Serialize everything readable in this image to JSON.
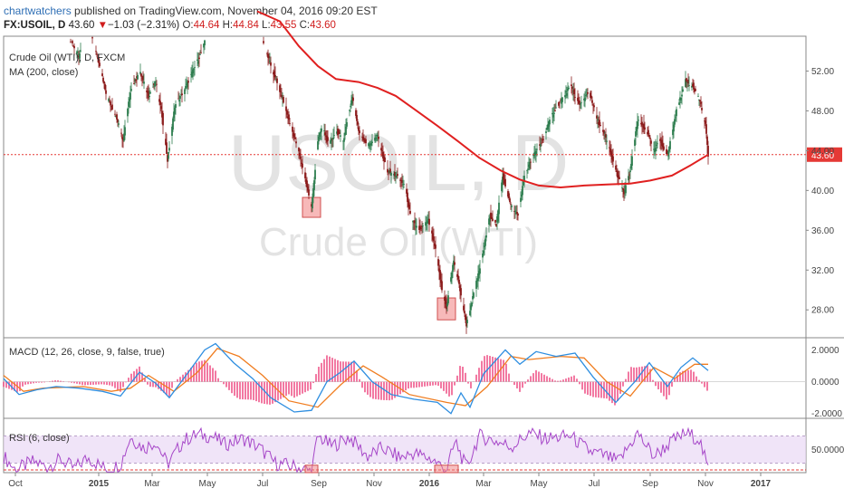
{
  "header": {
    "author": "chartwatchers",
    "published": "published on TradingView.com, November 04, 2016 09:20 EST",
    "symbol": "FX:USOIL, D",
    "last": "43.60",
    "arrow": "▼",
    "change": "−1.03 (−2.31%)",
    "o_label": "O:",
    "o": "44.64",
    "h_label": "H:",
    "h": "44.84",
    "l_label": "L:",
    "l": "43.55",
    "c_label": "C:",
    "c": "43.60"
  },
  "watermark": {
    "line1": "USOIL, D",
    "line2": "Crude Oil (WTI)"
  },
  "colors": {
    "candle_up": "#2e7d4f",
    "candle_down": "#8b1a1a",
    "ma": "#e02020",
    "macd": "#2e8ee0",
    "signal": "#f07d20",
    "hist": "#f06292",
    "rsi": "#a646c8",
    "price_tag": "#e53935",
    "highlight": "#f08080"
  },
  "chart_data": [
    {
      "type": "candlestick",
      "panel": "price",
      "legend": [
        "Crude Oil (WTI), D, FXCM",
        "MA (200, close)"
      ],
      "x_ticks": [
        "Oct",
        "2015",
        "Mar",
        "May",
        "Jul",
        "Sep",
        "Nov",
        "2016",
        "Mar",
        "May",
        "Jul",
        "Sep",
        "Nov",
        "2017"
      ],
      "x_tick_dates": [
        "2014-10-01",
        "2015-01-01",
        "2015-03-01",
        "2015-05-01",
        "2015-07-01",
        "2015-09-01",
        "2015-11-01",
        "2016-01-01",
        "2016-03-01",
        "2016-05-01",
        "2016-07-01",
        "2016-09-01",
        "2016-11-01",
        "2017-01-01"
      ],
      "x_range": [
        "2014-09-18",
        "2017-02-20"
      ],
      "y_ticks": [
        28.0,
        32.0,
        36.0,
        40.0,
        44.0,
        48.0,
        52.0
      ],
      "y_tick_labels": [
        "28.00",
        "32.00",
        "36.00",
        "40.00",
        "44.00",
        "48.00",
        "52.00"
      ],
      "ylim": [
        25.2,
        55.5
      ],
      "last_price": 43.6,
      "last_price_label": "43.60",
      "close_path": [
        [
          "2014-10-01",
          60.0
        ],
        [
          "2014-10-20",
          57.0
        ],
        [
          "2014-11-10",
          55.5
        ],
        [
          "2014-11-25",
          56.0
        ],
        [
          "2014-12-10",
          53.5
        ],
        [
          "2014-12-20",
          57.0
        ],
        [
          "2015-01-01",
          53.0
        ],
        [
          "2015-01-10",
          49.5
        ],
        [
          "2015-01-20",
          47.5
        ],
        [
          "2015-01-28",
          45.0
        ],
        [
          "2015-02-05",
          50.0
        ],
        [
          "2015-02-15",
          52.0
        ],
        [
          "2015-02-25",
          49.5
        ],
        [
          "2015-03-05",
          51.0
        ],
        [
          "2015-03-12",
          47.5
        ],
        [
          "2015-03-18",
          43.0
        ],
        [
          "2015-03-26",
          48.5
        ],
        [
          "2015-04-05",
          50.0
        ],
        [
          "2015-04-15",
          52.0
        ],
        [
          "2015-04-25",
          54.0
        ],
        [
          "2015-05-05",
          57.0
        ],
        [
          "2015-06-28",
          56.0
        ],
        [
          "2015-07-05",
          54.0
        ],
        [
          "2015-07-12",
          52.0
        ],
        [
          "2015-07-22",
          49.5
        ],
        [
          "2015-07-30",
          47.0
        ],
        [
          "2015-08-08",
          44.5
        ],
        [
          "2015-08-15",
          42.0
        ],
        [
          "2015-08-24",
          38.3
        ],
        [
          "2015-08-31",
          45.0
        ],
        [
          "2015-09-05",
          46.5
        ],
        [
          "2015-09-12",
          44.5
        ],
        [
          "2015-09-20",
          46.0
        ],
        [
          "2015-09-28",
          45.0
        ],
        [
          "2015-10-08",
          49.5
        ],
        [
          "2015-10-15",
          46.0
        ],
        [
          "2015-10-25",
          44.5
        ],
        [
          "2015-11-05",
          45.5
        ],
        [
          "2015-11-15",
          42.0
        ],
        [
          "2015-11-25",
          41.5
        ],
        [
          "2015-12-05",
          40.5
        ],
        [
          "2015-12-12",
          37.0
        ],
        [
          "2015-12-22",
          36.0
        ],
        [
          "2015-12-31",
          37.0
        ],
        [
          "2016-01-08",
          34.0
        ],
        [
          "2016-01-15",
          30.0
        ],
        [
          "2016-01-20",
          28.2
        ],
        [
          "2016-01-28",
          33.0
        ],
        [
          "2016-02-03",
          30.5
        ],
        [
          "2016-02-11",
          26.5
        ],
        [
          "2016-02-20",
          30.0
        ],
        [
          "2016-02-28",
          33.0
        ],
        [
          "2016-03-08",
          37.5
        ],
        [
          "2016-03-15",
          36.5
        ],
        [
          "2016-03-22",
          41.5
        ],
        [
          "2016-03-31",
          38.5
        ],
        [
          "2016-04-08",
          37.5
        ],
        [
          "2016-04-15",
          41.5
        ],
        [
          "2016-04-25",
          43.5
        ],
        [
          "2016-05-05",
          45.0
        ],
        [
          "2016-05-15",
          47.5
        ],
        [
          "2016-05-25",
          49.0
        ],
        [
          "2016-06-05",
          50.5
        ],
        [
          "2016-06-15",
          48.5
        ],
        [
          "2016-06-25",
          50.0
        ],
        [
          "2016-07-05",
          47.0
        ],
        [
          "2016-07-15",
          45.0
        ],
        [
          "2016-07-25",
          42.0
        ],
        [
          "2016-08-03",
          39.7
        ],
        [
          "2016-08-10",
          42.0
        ],
        [
          "2016-08-18",
          47.0
        ],
        [
          "2016-08-28",
          46.0
        ],
        [
          "2016-09-05",
          44.0
        ],
        [
          "2016-09-12",
          45.0
        ],
        [
          "2016-09-20",
          43.5
        ],
        [
          "2016-09-30",
          48.0
        ],
        [
          "2016-10-10",
          51.0
        ],
        [
          "2016-10-18",
          50.5
        ],
        [
          "2016-10-26",
          49.0
        ],
        [
          "2016-11-01",
          46.5
        ],
        [
          "2016-11-04",
          43.6
        ]
      ],
      "ma200": [
        [
          "2015-06-25",
          58.0
        ],
        [
          "2015-07-20",
          57.0
        ],
        [
          "2015-08-10",
          54.5
        ],
        [
          "2015-08-31",
          52.5
        ],
        [
          "2015-09-20",
          51.2
        ],
        [
          "2015-10-15",
          50.9
        ],
        [
          "2015-11-05",
          50.3
        ],
        [
          "2015-11-25",
          49.5
        ],
        [
          "2015-12-15",
          48.2
        ],
        [
          "2016-01-10",
          46.5
        ],
        [
          "2016-02-01",
          45.0
        ],
        [
          "2016-02-25",
          43.3
        ],
        [
          "2016-03-20",
          42.0
        ],
        [
          "2016-04-10",
          41.1
        ],
        [
          "2016-05-01",
          40.5
        ],
        [
          "2016-05-25",
          40.3
        ],
        [
          "2016-06-20",
          40.5
        ],
        [
          "2016-07-15",
          40.6
        ],
        [
          "2016-08-10",
          40.7
        ],
        [
          "2016-09-01",
          41.0
        ],
        [
          "2016-09-25",
          41.5
        ],
        [
          "2016-10-15",
          42.5
        ],
        [
          "2016-11-04",
          43.6
        ]
      ],
      "highlights": [
        {
          "date": "2015-08-24",
          "low": 37.3,
          "high": 39.3
        },
        {
          "date": "2016-01-20",
          "low": 27.0,
          "high": 29.2
        }
      ]
    },
    {
      "type": "line",
      "panel": "macd",
      "legend": "MACD (12, 26, close, 9, false, true)",
      "y_ticks": [
        -2.0,
        0.0,
        2.0
      ],
      "y_tick_labels": [
        "-2.0000",
        "0.0000",
        "2.0000"
      ],
      "ylim": [
        -2.3,
        2.6
      ],
      "macd": [
        [
          "2014-09-18",
          0.2
        ],
        [
          "2014-10-05",
          -0.8
        ],
        [
          "2014-10-25",
          -0.5
        ],
        [
          "2014-11-15",
          -0.3
        ],
        [
          "2014-12-10",
          -0.4
        ],
        [
          "2015-01-05",
          -0.6
        ],
        [
          "2015-01-25",
          -0.9
        ],
        [
          "2015-02-15",
          0.6
        ],
        [
          "2015-03-05",
          -0.1
        ],
        [
          "2015-03-20",
          -1.0
        ],
        [
          "2015-04-10",
          0.6
        ],
        [
          "2015-04-28",
          2.0
        ],
        [
          "2015-05-10",
          2.4
        ],
        [
          "2015-05-30",
          1.2
        ],
        [
          "2015-06-20",
          0.2
        ],
        [
          "2015-07-10",
          -1.0
        ],
        [
          "2015-08-05",
          -1.9
        ],
        [
          "2015-08-24",
          -1.8
        ],
        [
          "2015-09-10",
          0.0
        ],
        [
          "2015-09-25",
          0.6
        ],
        [
          "2015-10-10",
          1.3
        ],
        [
          "2015-10-30",
          0.0
        ],
        [
          "2015-11-20",
          -0.8
        ],
        [
          "2015-12-15",
          -1.1
        ],
        [
          "2016-01-10",
          -1.3
        ],
        [
          "2016-01-25",
          -2.0
        ],
        [
          "2016-02-05",
          -0.7
        ],
        [
          "2016-02-15",
          -1.6
        ],
        [
          "2016-03-01",
          0.5
        ],
        [
          "2016-03-25",
          2.0
        ],
        [
          "2016-04-10",
          1.1
        ],
        [
          "2016-04-28",
          1.9
        ],
        [
          "2016-05-20",
          1.6
        ],
        [
          "2016-06-10",
          1.8
        ],
        [
          "2016-06-30",
          0.3
        ],
        [
          "2016-07-25",
          -1.3
        ],
        [
          "2016-08-15",
          0.0
        ],
        [
          "2016-08-31",
          1.2
        ],
        [
          "2016-09-20",
          -0.3
        ],
        [
          "2016-10-05",
          0.9
        ],
        [
          "2016-10-18",
          1.5
        ],
        [
          "2016-11-04",
          0.7
        ]
      ],
      "signal": [
        [
          "2014-09-18",
          0.4
        ],
        [
          "2014-10-10",
          -0.6
        ],
        [
          "2014-11-01",
          -0.4
        ],
        [
          "2014-12-15",
          -0.3
        ],
        [
          "2015-01-15",
          -0.6
        ],
        [
          "2015-02-05",
          -0.4
        ],
        [
          "2015-02-25",
          0.4
        ],
        [
          "2015-03-25",
          -0.6
        ],
        [
          "2015-04-20",
          0.6
        ],
        [
          "2015-05-12",
          2.1
        ],
        [
          "2015-06-05",
          1.6
        ],
        [
          "2015-07-01",
          0.4
        ],
        [
          "2015-07-30",
          -1.2
        ],
        [
          "2015-08-31",
          -1.6
        ],
        [
          "2015-09-25",
          -0.2
        ],
        [
          "2015-10-20",
          1.0
        ],
        [
          "2015-11-10",
          0.3
        ],
        [
          "2015-12-10",
          -0.8
        ],
        [
          "2016-01-20",
          -1.3
        ],
        [
          "2016-02-10",
          -1.5
        ],
        [
          "2016-03-05",
          -0.3
        ],
        [
          "2016-03-31",
          1.6
        ],
        [
          "2016-04-20",
          1.4
        ],
        [
          "2016-05-25",
          1.6
        ],
        [
          "2016-06-20",
          1.5
        ],
        [
          "2016-07-15",
          0.0
        ],
        [
          "2016-08-10",
          -0.9
        ],
        [
          "2016-09-05",
          0.9
        ],
        [
          "2016-09-28",
          0.2
        ],
        [
          "2016-10-20",
          1.1
        ],
        [
          "2016-11-04",
          1.1
        ]
      ]
    },
    {
      "type": "line",
      "panel": "rsi",
      "legend": "RSI (6, close)",
      "y_ticks": [
        50.0
      ],
      "y_tick_labels": [
        "50.0000"
      ],
      "ylim": [
        16,
        92
      ],
      "band": [
        30,
        70
      ],
      "rsi": [
        [
          "2014-09-18",
          40
        ],
        [
          "2014-10-01",
          20
        ],
        [
          "2014-10-20",
          32
        ],
        [
          "2014-11-05",
          25
        ],
        [
          "2014-11-20",
          35
        ],
        [
          "2014-12-05",
          22
        ],
        [
          "2014-12-20",
          38
        ],
        [
          "2015-01-10",
          20
        ],
        [
          "2015-01-25",
          28
        ],
        [
          "2015-02-05",
          68
        ],
        [
          "2015-02-20",
          52
        ],
        [
          "2015-03-05",
          62
        ],
        [
          "2015-03-18",
          28
        ],
        [
          "2015-04-05",
          64
        ],
        [
          "2015-04-20",
          72
        ],
        [
          "2015-05-05",
          70
        ],
        [
          "2015-05-20",
          58
        ],
        [
          "2015-06-10",
          66
        ],
        [
          "2015-06-28",
          52
        ],
        [
          "2015-07-15",
          30
        ],
        [
          "2015-08-05",
          25
        ],
        [
          "2015-08-24",
          18
        ],
        [
          "2015-08-31",
          70
        ],
        [
          "2015-09-15",
          55
        ],
        [
          "2015-10-05",
          68
        ],
        [
          "2015-10-25",
          40
        ],
        [
          "2015-11-10",
          52
        ],
        [
          "2015-11-30",
          38
        ],
        [
          "2015-12-15",
          45
        ],
        [
          "2016-01-05",
          35
        ],
        [
          "2016-01-20",
          20
        ],
        [
          "2016-01-30",
          62
        ],
        [
          "2016-02-11",
          22
        ],
        [
          "2016-02-25",
          70
        ],
        [
          "2016-03-15",
          62
        ],
        [
          "2016-04-01",
          54
        ],
        [
          "2016-04-20",
          74
        ],
        [
          "2016-05-10",
          66
        ],
        [
          "2016-06-05",
          70
        ],
        [
          "2016-06-25",
          48
        ],
        [
          "2016-07-10",
          42
        ],
        [
          "2016-07-28",
          32
        ],
        [
          "2016-08-18",
          74
        ],
        [
          "2016-09-05",
          40
        ],
        [
          "2016-09-25",
          62
        ],
        [
          "2016-10-10",
          74
        ],
        [
          "2016-10-25",
          66
        ],
        [
          "2016-11-04",
          20
        ]
      ]
    }
  ]
}
